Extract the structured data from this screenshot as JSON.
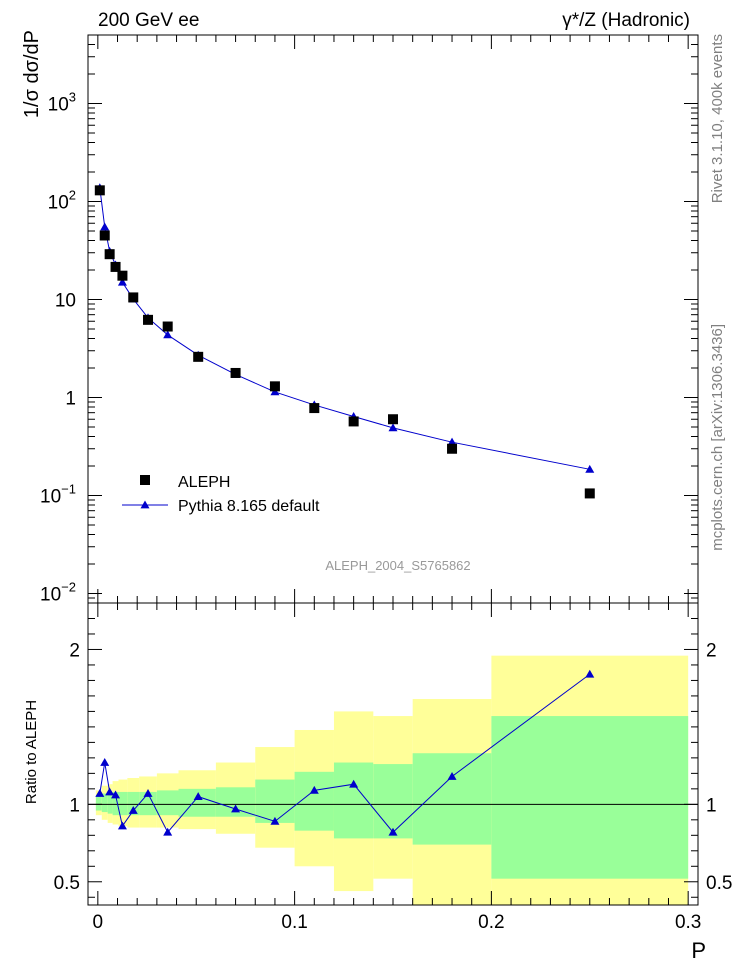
{
  "header": {
    "energy": "200 GeV ee",
    "process": "γ*/Z (Hadronic)"
  },
  "side": {
    "rivet": "Rivet 3.1.10,  400k events",
    "mcplots": "mcplots.cern.ch [arXiv:1306.3436]"
  },
  "chart_data": [
    {
      "type": "scatter",
      "title": "",
      "analysis_label": "ALEPH_2004_S5765862",
      "ylabel": "1/σ  dσ/dP",
      "yscale": "log",
      "xlim": [
        -0.005,
        0.305
      ],
      "ylim": [
        0.008,
        5000
      ],
      "ytick_labels": [
        {
          "value": 0.01,
          "base": "10",
          "exp": "−2"
        },
        {
          "value": 0.1,
          "base": "10",
          "exp": "−1"
        },
        {
          "value": 1,
          "base": "1",
          "exp": ""
        },
        {
          "value": 10,
          "base": "10",
          "exp": ""
        },
        {
          "value": 100,
          "base": "10",
          "exp": "2"
        },
        {
          "value": 1000,
          "base": "10",
          "exp": "3"
        }
      ],
      "legend": [
        {
          "key": "data",
          "label": "ALEPH",
          "marker": "square",
          "color": "#000000"
        },
        {
          "key": "mc",
          "label": "Pythia 8.165 default",
          "marker": "triangle",
          "color": "#0000cc"
        }
      ],
      "series": [
        {
          "name": "ALEPH",
          "x": [
            0.001,
            0.0035,
            0.006,
            0.009,
            0.0125,
            0.018,
            0.0255,
            0.0355,
            0.051,
            0.07,
            0.09,
            0.11,
            0.13,
            0.15,
            0.18,
            0.25
          ],
          "y": [
            130,
            45,
            29,
            21.5,
            17.5,
            10.5,
            6.2,
            5.3,
            2.6,
            1.78,
            1.3,
            0.78,
            0.57,
            0.6,
            0.3,
            0.105
          ]
        },
        {
          "name": "Pythia 8.165 default",
          "x": [
            0.001,
            0.0035,
            0.006,
            0.009,
            0.0125,
            0.018,
            0.0255,
            0.0355,
            0.051,
            0.07,
            0.09,
            0.11,
            0.13,
            0.15,
            0.18,
            0.25
          ],
          "y": [
            138,
            55,
            31,
            22.5,
            15,
            10.1,
            6.5,
            4.35,
            2.7,
            1.72,
            1.14,
            0.84,
            0.64,
            0.49,
            0.35,
            0.185
          ]
        }
      ]
    },
    {
      "type": "line",
      "ylabel": "Ratio to ALEPH",
      "xlabel": "P",
      "xlim": [
        -0.005,
        0.305
      ],
      "ylim": [
        0.35,
        2.3
      ],
      "reference_line": 1,
      "xtick_labels": [
        0,
        0.1,
        0.2,
        0.3
      ],
      "ytick_labels": [
        {
          "value": 0.5,
          "label": "0.5"
        },
        {
          "value": 1,
          "label": "1"
        },
        {
          "value": 2,
          "label": "2"
        }
      ],
      "bands": [
        {
          "x0": -0.001,
          "x1": 0.002,
          "stat_lo": 0.96,
          "stat_hi": 1.06,
          "tot_lo": 0.93,
          "tot_hi": 1.09
        },
        {
          "x0": 0.002,
          "x1": 0.005,
          "stat_lo": 0.95,
          "stat_hi": 1.07,
          "tot_lo": 0.9,
          "tot_hi": 1.12
        },
        {
          "x0": 0.005,
          "x1": 0.0075,
          "stat_lo": 0.94,
          "stat_hi": 1.07,
          "tot_lo": 0.88,
          "tot_hi": 1.13
        },
        {
          "x0": 0.0075,
          "x1": 0.0105,
          "stat_lo": 0.93,
          "stat_hi": 1.08,
          "tot_lo": 0.87,
          "tot_hi": 1.15
        },
        {
          "x0": 0.0105,
          "x1": 0.015,
          "stat_lo": 0.93,
          "stat_hi": 1.08,
          "tot_lo": 0.86,
          "tot_hi": 1.16
        },
        {
          "x0": 0.015,
          "x1": 0.021,
          "stat_lo": 0.93,
          "stat_hi": 1.08,
          "tot_lo": 0.85,
          "tot_hi": 1.17
        },
        {
          "x0": 0.021,
          "x1": 0.03,
          "stat_lo": 0.93,
          "stat_hi": 1.08,
          "tot_lo": 0.85,
          "tot_hi": 1.18
        },
        {
          "x0": 0.03,
          "x1": 0.041,
          "stat_lo": 0.93,
          "stat_hi": 1.09,
          "tot_lo": 0.85,
          "tot_hi": 1.2
        },
        {
          "x0": 0.041,
          "x1": 0.06,
          "stat_lo": 0.92,
          "stat_hi": 1.1,
          "tot_lo": 0.84,
          "tot_hi": 1.22
        },
        {
          "x0": 0.06,
          "x1": 0.08,
          "stat_lo": 0.92,
          "stat_hi": 1.11,
          "tot_lo": 0.81,
          "tot_hi": 1.27
        },
        {
          "x0": 0.08,
          "x1": 0.1,
          "stat_lo": 0.88,
          "stat_hi": 1.16,
          "tot_lo": 0.72,
          "tot_hi": 1.37
        },
        {
          "x0": 0.1,
          "x1": 0.12,
          "stat_lo": 0.83,
          "stat_hi": 1.21,
          "tot_lo": 0.6,
          "tot_hi": 1.48
        },
        {
          "x0": 0.12,
          "x1": 0.14,
          "stat_lo": 0.78,
          "stat_hi": 1.27,
          "tot_lo": 0.44,
          "tot_hi": 1.6
        },
        {
          "x0": 0.14,
          "x1": 0.16,
          "stat_lo": 0.78,
          "stat_hi": 1.26,
          "tot_lo": 0.52,
          "tot_hi": 1.57
        },
        {
          "x0": 0.16,
          "x1": 0.2,
          "stat_lo": 0.74,
          "stat_hi": 1.33,
          "tot_lo": 0.3,
          "tot_hi": 1.68
        },
        {
          "x0": 0.2,
          "x1": 0.3,
          "stat_lo": 0.52,
          "stat_hi": 1.57,
          "tot_lo": 0.3,
          "tot_hi": 1.96
        }
      ],
      "series": [
        {
          "name": "Pythia 8.165 default / ALEPH",
          "x": [
            0.001,
            0.0035,
            0.006,
            0.009,
            0.0125,
            0.018,
            0.0255,
            0.0355,
            0.051,
            0.07,
            0.09,
            0.11,
            0.13,
            0.15,
            0.18,
            0.25
          ],
          "y": [
            1.07,
            1.27,
            1.08,
            1.06,
            0.86,
            0.96,
            1.07,
            0.82,
            1.05,
            0.97,
            0.89,
            1.09,
            1.13,
            0.82,
            1.18,
            1.84
          ]
        }
      ]
    }
  ]
}
